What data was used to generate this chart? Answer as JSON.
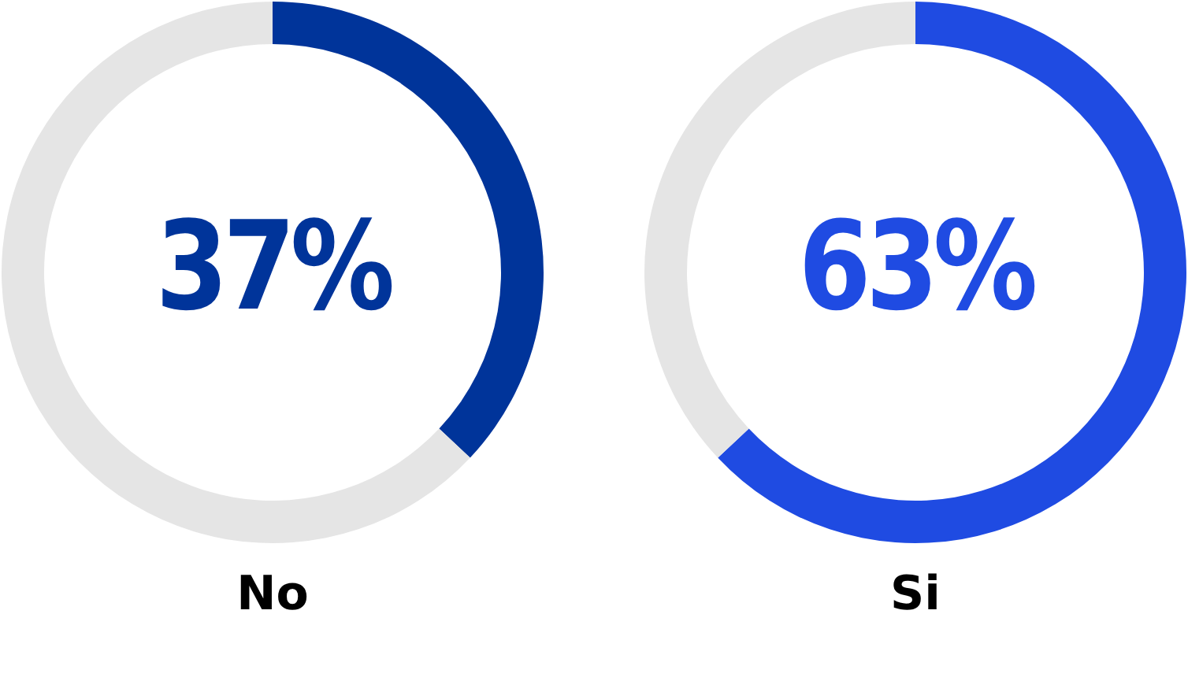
{
  "chart_data": [
    {
      "type": "donut",
      "xlabel": "No",
      "categories": [
        null,
        null
      ],
      "values": [
        37,
        63
      ],
      "colors": [
        "#00349a",
        "#e5e5e5"
      ],
      "value_labels": [
        "37%",
        null
      ]
    },
    {
      "type": "donut",
      "xlabel": "Si",
      "categories": [
        null,
        null
      ],
      "values": [
        63,
        37
      ],
      "colors": [
        "#1f4be2",
        "#e5e5e5"
      ],
      "value_labels": [
        "63%",
        null
      ]
    }
  ]
}
